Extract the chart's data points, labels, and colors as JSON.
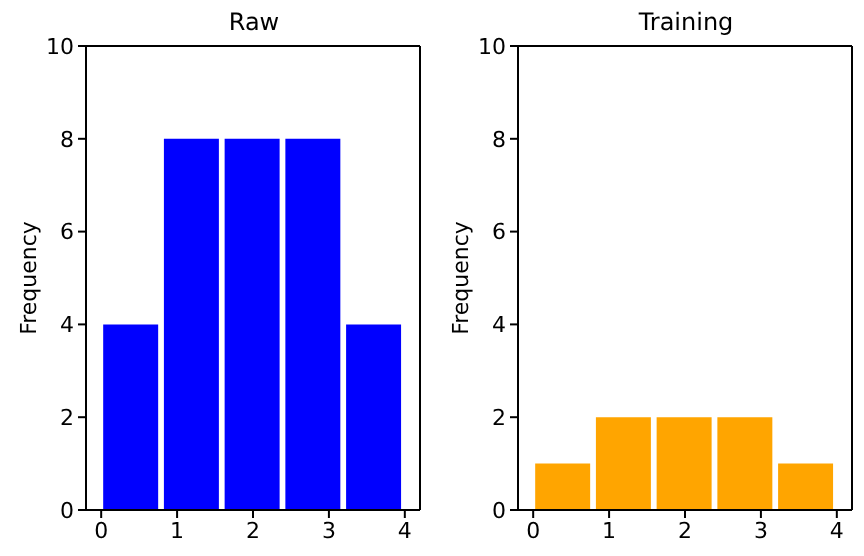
{
  "chart_data": [
    {
      "type": "histogram",
      "title": "Raw",
      "ylabel": "Frequency",
      "bins": [
        0,
        0.8,
        1.6,
        2.4,
        3.2,
        4.0
      ],
      "values": [
        4,
        8,
        8,
        8,
        4
      ],
      "color": "#0000ff",
      "xlim": [
        -0.2,
        4.2
      ],
      "xticks": [
        0,
        1,
        2,
        3,
        4
      ],
      "ylim": [
        0,
        10
      ],
      "yticks": [
        0,
        2,
        4,
        6,
        8,
        10
      ]
    },
    {
      "type": "histogram",
      "title": "Training",
      "ylabel": "Frequency",
      "bins": [
        0,
        0.8,
        1.6,
        2.4,
        3.2,
        4.0
      ],
      "values": [
        1,
        2,
        2,
        2,
        1
      ],
      "color": "#ffa500",
      "xlim": [
        -0.2,
        4.2
      ],
      "xticks": [
        0,
        1,
        2,
        3,
        4
      ],
      "ylim": [
        0,
        10
      ],
      "yticks": [
        0,
        2,
        4,
        6,
        8,
        10
      ]
    }
  ]
}
